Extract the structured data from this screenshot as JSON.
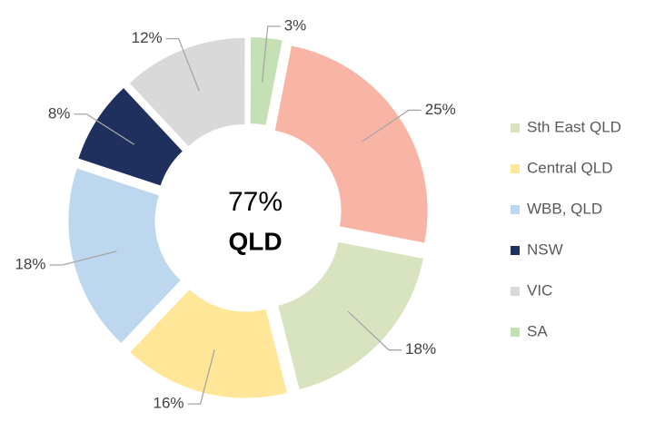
{
  "chart_data": {
    "type": "donut",
    "categories": [
      "Sth East QLD",
      "Central QLD",
      "WBB, QLD",
      "NSW",
      "VIC",
      "SA",
      null
    ],
    "values": [
      18,
      16,
      18,
      8,
      12,
      3,
      25
    ],
    "value_labels": [
      "18%",
      "16%",
      "18%",
      "8%",
      "12%",
      "3%",
      "25%"
    ],
    "colors": [
      "#d8e4bf",
      "#ffe699",
      "#bdd7ee",
      "#1f2f5e",
      "#d9d9d9",
      "#c5e0b4",
      "#f8b4a5"
    ],
    "annotations": [
      "77%",
      "QLD"
    ],
    "legend": "right"
  }
}
